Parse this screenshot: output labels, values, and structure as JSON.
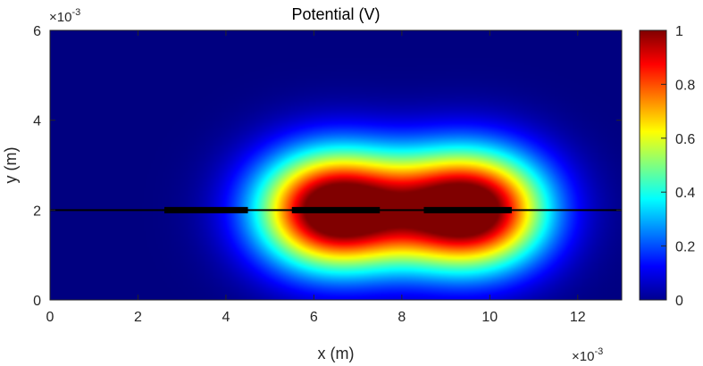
{
  "chart_data": {
    "type": "heatmap",
    "title": "Potential (V)",
    "xlabel": "x (m)",
    "ylabel": "y (m)",
    "x_exponent_label": "×10",
    "x_exponent_power": "-3",
    "y_exponent_label": "×10",
    "y_exponent_power": "-3",
    "xlim": [
      0,
      13
    ],
    "ylim": [
      0,
      6
    ],
    "x_ticks": [
      0,
      2,
      4,
      6,
      8,
      10,
      12
    ],
    "y_ticks": [
      0,
      2,
      4,
      6
    ],
    "colorbar": {
      "colormap": "jet",
      "limits": [
        0,
        1
      ],
      "ticks": [
        "0",
        "0.2",
        "0.4",
        "0.6",
        "0.8",
        "1"
      ],
      "tick_values": [
        0,
        0.2,
        0.4,
        0.6,
        0.8,
        1
      ]
    },
    "ground_line": {
      "y": 2,
      "x_range": [
        0,
        13
      ],
      "color": "#000000"
    },
    "electrodes": [
      {
        "x_range": [
          2.6,
          4.5
        ],
        "y": 2,
        "potential": 0
      },
      {
        "x_range": [
          5.5,
          7.5
        ],
        "y": 2,
        "potential": 1
      },
      {
        "x_range": [
          8.5,
          10.5
        ],
        "y": 2,
        "potential": 1
      }
    ]
  }
}
